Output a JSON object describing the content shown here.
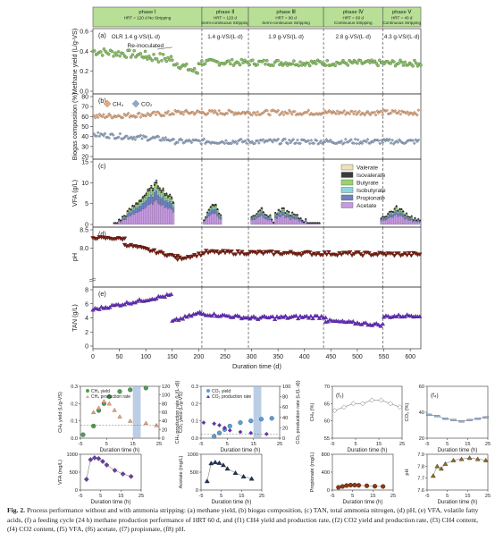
{
  "caption": {
    "label": "Fig. 2.",
    "text": "Process performance without and with ammonia stripping: (a) methane yield, (b) biogas composition, (c) TAN, total ammonia nitrogen, (d) pH, (e) VFA, volatile fatty acids, (f) a feeding cycle (24 h) methane production performance of HRT 60 d, and (f1) CH4 yield and production rate, (f2) CO2 yield and production rate, (f3) CH4 content, (f4) CO2 content, (f5) VFA, (f6) acetate, (f7) propionate, (f8) pH."
  },
  "colors": {
    "phase_bg": "#b7df95",
    "green": "#8fbf6a",
    "orange": "#e9a878",
    "blue_dots": "#8fa8c8",
    "darkred": "#7a1f12",
    "purple": "#6a2fc4",
    "vfa_valerate": "#efe2b8",
    "vfa_isovalerate": "#3a3a3a",
    "vfa_butyrate": "#9bd26f",
    "vfa_isobutyrate": "#8ed6df",
    "vfa_propionate": "#7082c2",
    "vfa_acetate": "#c79ae2"
  },
  "chart_data": [
    {
      "id": "phases",
      "type": "table",
      "phases": [
        {
          "label": "phase Ⅰ",
          "sub1": "HRT = 120 d No Stripping",
          "sub2": "",
          "start": 0,
          "end": 206
        },
        {
          "label": "phase Ⅱ",
          "sub1": "HRT = 120 d",
          "sub2": "Semi-continuous Stripping",
          "start": 206,
          "end": 294
        },
        {
          "label": "phase Ⅲ",
          "sub1": "HRT = 90 d",
          "sub2": "Semi-continuous Stripping",
          "start": 294,
          "end": 436
        },
        {
          "label": "phase Ⅳ",
          "sub1": "HRT = 60 d",
          "sub2": "Continuous Stripping",
          "start": 436,
          "end": 548
        },
        {
          "label": "phase Ⅴ",
          "sub1": "HRT = 40 d",
          "sub2": "Continuous Stripping",
          "start": 548,
          "end": 620
        }
      ],
      "dividers": [
        206,
        294,
        436,
        548
      ]
    },
    {
      "id": "a",
      "type": "scatter",
      "panel_label": "(a)",
      "ylabel": "Methane yield (L/g-VS)",
      "ylim": [
        0,
        0.6
      ],
      "yticks": [
        0.0,
        0.2,
        0.4,
        0.6
      ],
      "annotations": [
        "OLR 1.4 g-VS/(L·d)",
        "1.4 g-VS/(L·d)",
        "1.9 g-VS/(L·d)",
        "2.8 g-VS/(L·d)",
        "4.3 g-VS/(L·d)",
        "Re-inoculated"
      ],
      "segments": [
        {
          "x0": 0,
          "x1": 100,
          "y0": 0.4,
          "y1": 0.36,
          "noise": 0.04
        },
        {
          "x0": 100,
          "x1": 150,
          "y0": 0.35,
          "y1": 0.32,
          "noise": 0.05
        },
        {
          "x0": 150,
          "x1": 200,
          "y0": 0.3,
          "y1": 0.18,
          "noise": 0.04
        },
        {
          "x0": 200,
          "x1": 620,
          "y0": 0.29,
          "y1": 0.28,
          "noise": 0.03
        }
      ]
    },
    {
      "id": "b",
      "type": "scatter",
      "panel_label": "(b)",
      "ylabel": "Biogas composition (%)",
      "ylim": [
        20,
        80
      ],
      "yticks": [
        20,
        30,
        40,
        50,
        60,
        70,
        80
      ],
      "legend": [
        "CH₄",
        "CO₂"
      ],
      "series": [
        {
          "name": "CH₄",
          "level": 64,
          "noise": 2.5
        },
        {
          "name": "CO₂",
          "level": 35,
          "noise": 2.5
        }
      ]
    },
    {
      "id": "c",
      "type": "bar",
      "panel_label": "(c)",
      "ylabel": "VFA (g/L)",
      "ylim": [
        0,
        15
      ],
      "yticks": [
        0,
        5,
        10,
        15
      ],
      "legend": [
        "Valerate",
        "Isovalerate",
        "Butyrate",
        "Isobutyrate",
        "Propionate",
        "Acetate"
      ],
      "peaks": [
        {
          "x0": 40,
          "x1": 155,
          "peak": 10,
          "center": 120
        },
        {
          "x0": 210,
          "x1": 245,
          "peak": 5.5,
          "center": 228
        },
        {
          "x0": 300,
          "x1": 345,
          "peak": 4,
          "center": 318
        },
        {
          "x0": 345,
          "x1": 430,
          "peak": 3.5,
          "center": 360
        },
        {
          "x0": 545,
          "x1": 620,
          "peak": 4,
          "center": 575
        }
      ]
    },
    {
      "id": "d",
      "type": "scatter",
      "panel_label": "(d)",
      "ylabel": "pH",
      "ylim": [
        7.0,
        8.5
      ],
      "yticks": [
        8.0,
        8.5
      ],
      "segments": [
        {
          "x0": 0,
          "x1": 60,
          "y0": 8.28,
          "y1": 8.25,
          "noise": 0.03
        },
        {
          "x0": 60,
          "x1": 160,
          "y0": 8.1,
          "y1": 7.75,
          "noise": 0.04
        },
        {
          "x0": 160,
          "x1": 210,
          "y0": 7.7,
          "y1": 7.85,
          "noise": 0.04
        },
        {
          "x0": 210,
          "x1": 620,
          "y0": 7.88,
          "y1": 7.82,
          "noise": 0.05
        }
      ]
    },
    {
      "id": "e",
      "type": "line",
      "panel_label": "(e)",
      "ylabel": "TAN (g/L)",
      "ylim": [
        0,
        8
      ],
      "yticks": [
        0,
        2,
        4,
        6,
        8
      ],
      "xlabel": "Duration time (d)",
      "xlim": [
        0,
        620
      ],
      "xticks": [
        0,
        50,
        100,
        150,
        200,
        250,
        300,
        350,
        400,
        450,
        500,
        550,
        600
      ],
      "segments": [
        {
          "x0": 0,
          "x1": 150,
          "y0": 5.2,
          "y1": 7.3,
          "noise": 0.2
        },
        {
          "x0": 150,
          "x1": 205,
          "y0": 3.5,
          "y1": 4.8,
          "noise": 0.2
        },
        {
          "x0": 205,
          "x1": 300,
          "y0": 4.6,
          "y1": 4.0,
          "noise": 0.2
        },
        {
          "x0": 300,
          "x1": 440,
          "y0": 4.0,
          "y1": 4.2,
          "noise": 0.25
        },
        {
          "x0": 440,
          "x1": 550,
          "y0": 3.6,
          "y1": 3.0,
          "noise": 0.2
        },
        {
          "x0": 550,
          "x1": 620,
          "y0": 4.2,
          "y1": 4.4,
          "noise": 0.2
        }
      ]
    },
    {
      "id": "f1",
      "type": "scatter",
      "ylabel_left": "CH₄ yield (L/g-VS)",
      "ylabel_right": "CH₄ production rate (L/(L·d))",
      "ylim_left": [
        0,
        0.3
      ],
      "ylim_right": [
        0,
        120
      ],
      "yticks_left": [
        0.0,
        0.1,
        0.2,
        0.3
      ],
      "yticks_right": [
        0,
        20,
        40,
        60,
        80,
        100,
        120
      ],
      "xlim": [
        -5,
        25
      ],
      "xticks": [
        -5,
        5,
        15,
        25
      ],
      "xlabel": "Duration time (h)",
      "legend": [
        "CH₄ yield",
        "CH₄ production rate"
      ],
      "yield_x": [
        -4,
        0,
        2,
        4,
        6,
        10,
        14,
        20
      ],
      "yield_y": [
        0.02,
        0.07,
        0.16,
        0.2,
        0.24,
        0.27,
        0.28,
        0.29
      ],
      "rate_x": [
        0,
        2,
        4,
        6,
        8,
        10,
        14,
        20,
        24
      ],
      "rate_y": [
        60,
        70,
        85,
        80,
        65,
        50,
        40,
        35,
        30
      ]
    },
    {
      "id": "f2",
      "type": "scatter",
      "ylabel_left": "CO₂ yield (L/g-VS)",
      "ylabel_right": "CO₂ production rate (L/(L·d))",
      "ylim_left": [
        0,
        0.3
      ],
      "ylim_right": [
        0,
        100
      ],
      "yticks_left": [
        0.0,
        0.1,
        0.2,
        0.3
      ],
      "yticks_right": [
        0,
        20,
        40,
        60,
        80,
        100
      ],
      "xlim": [
        -5,
        25
      ],
      "xticks": [
        -5,
        5,
        15,
        25
      ],
      "xlabel": "Duration time (h)",
      "legend": [
        "CO₂ yield",
        "CO₂ production rate"
      ],
      "yield_x": [
        0,
        2,
        4,
        6,
        10,
        14,
        18,
        22
      ],
      "yield_y": [
        0.01,
        0.03,
        0.05,
        0.07,
        0.09,
        0.1,
        0.11,
        0.115
      ],
      "rate_x": [
        -4,
        0,
        2,
        4,
        6,
        10,
        14,
        20
      ],
      "rate_y": [
        30,
        28,
        25,
        20,
        15,
        12,
        10,
        8
      ]
    },
    {
      "id": "f3",
      "type": "line",
      "panel_label": "(f₃)",
      "ylabel": "CH₄ (%)",
      "ylim": [
        55,
        70
      ],
      "yticks": [
        55,
        60,
        65,
        70
      ],
      "xlim": [
        -5,
        25
      ],
      "xticks": [
        -5,
        5,
        15,
        25
      ],
      "xlabel": "Duration time (h)",
      "x": [
        -4,
        0,
        4,
        8,
        12,
        16,
        20,
        24
      ],
      "y": [
        63,
        64,
        65,
        65,
        66,
        66,
        65,
        64
      ]
    },
    {
      "id": "f4",
      "type": "line",
      "panel_label": "(f₄)",
      "ylabel": "CO₂ (%)",
      "ylim": [
        20,
        60
      ],
      "yticks": [
        20,
        40,
        60
      ],
      "xlim": [
        -5,
        25
      ],
      "xticks": [
        -5,
        5,
        15,
        25
      ],
      "xlabel": "Duration time (h)",
      "x": [
        -4,
        0,
        4,
        8,
        12,
        16,
        20,
        24
      ],
      "y": [
        38,
        37,
        35,
        34,
        33,
        34,
        35,
        36
      ]
    },
    {
      "id": "f5",
      "type": "line",
      "ylabel": "VFA (mg/L)",
      "ylim": [
        0,
        1000
      ],
      "yticks": [
        0,
        500,
        1000
      ],
      "xlim": [
        -5,
        25
      ],
      "xticks": [
        -5,
        5,
        15,
        25
      ],
      "xlabel": "Duration time (h)",
      "x": [
        -2,
        0,
        2,
        4,
        6,
        8,
        12,
        16,
        20
      ],
      "y": [
        300,
        850,
        900,
        880,
        800,
        700,
        550,
        450,
        380
      ]
    },
    {
      "id": "f6",
      "type": "line",
      "ylabel": "Acetate (mg/L)",
      "ylim": [
        0,
        1000
      ],
      "yticks": [
        0,
        500,
        1000
      ],
      "xlim": [
        -5,
        25
      ],
      "xticks": [
        -5,
        5,
        15,
        25
      ],
      "xlabel": "Duration time (h)",
      "x": [
        -2,
        0,
        2,
        4,
        6,
        8,
        12,
        16,
        20
      ],
      "y": [
        250,
        750,
        780,
        760,
        700,
        600,
        480,
        380,
        320
      ]
    },
    {
      "id": "f7",
      "type": "line",
      "ylabel": "Propionate (mg/L)",
      "ylim": [
        0,
        800
      ],
      "yticks": [
        0,
        400,
        800
      ],
      "xlim": [
        -5,
        25
      ],
      "xticks": [
        -5,
        5,
        15,
        25
      ],
      "xlabel": "Duration time (h)",
      "x": [
        -2,
        0,
        2,
        4,
        6,
        8,
        12,
        16,
        20
      ],
      "y": [
        60,
        80,
        100,
        110,
        110,
        105,
        95,
        85,
        80
      ]
    },
    {
      "id": "f8",
      "type": "line",
      "ylabel": "pH",
      "ylim": [
        7.6,
        7.9
      ],
      "yticks": [
        7.6,
        7.7,
        7.8,
        7.9
      ],
      "xlim": [
        -5,
        25
      ],
      "xticks": [
        -5,
        5,
        15,
        25
      ],
      "xlabel": "Duration time (h)",
      "x": [
        -2,
        0,
        2,
        4,
        8,
        12,
        16,
        20,
        24
      ],
      "y": [
        7.72,
        7.8,
        7.78,
        7.82,
        7.85,
        7.86,
        7.87,
        7.86,
        7.85
      ]
    }
  ]
}
